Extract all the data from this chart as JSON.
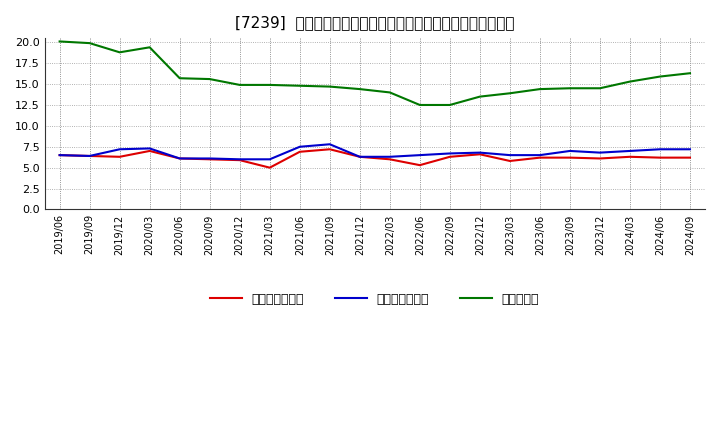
{
  "title": "[7239]  売上債権回転率、買入債務回転率、在庫回転率の推移",
  "x_labels": [
    "2019/06",
    "2019/09",
    "2019/12",
    "2020/03",
    "2020/06",
    "2020/09",
    "2020/12",
    "2021/03",
    "2021/06",
    "2021/09",
    "2021/12",
    "2022/03",
    "2022/06",
    "2022/09",
    "2022/12",
    "2023/03",
    "2023/06",
    "2023/09",
    "2023/12",
    "2024/03",
    "2024/06",
    "2024/09"
  ],
  "receivables_turnover": [
    6.5,
    6.4,
    6.3,
    7.0,
    6.1,
    6.0,
    5.9,
    5.0,
    6.9,
    7.2,
    6.3,
    6.0,
    5.3,
    6.3,
    6.6,
    5.8,
    6.2,
    6.2,
    6.1,
    6.3,
    6.2,
    6.2
  ],
  "payables_turnover": [
    6.5,
    6.4,
    7.2,
    7.3,
    6.1,
    6.1,
    6.0,
    6.0,
    7.5,
    7.8,
    6.3,
    6.3,
    6.5,
    6.7,
    6.8,
    6.5,
    6.5,
    7.0,
    6.8,
    7.0,
    7.2,
    7.2
  ],
  "inventory_turnover": [
    20.1,
    19.9,
    18.8,
    19.4,
    15.7,
    15.6,
    14.9,
    14.9,
    14.8,
    14.7,
    14.4,
    14.0,
    12.5,
    12.5,
    13.5,
    13.9,
    14.4,
    14.5,
    14.5,
    15.3,
    15.9,
    16.3
  ],
  "receivables_color": "#dd0000",
  "payables_color": "#0000cc",
  "inventory_color": "#007700",
  "legend_labels": [
    "売上債権回転率",
    "買入債務回転率",
    "在庫回転率"
  ],
  "ylim": [
    0,
    20.5
  ],
  "yticks": [
    0.0,
    2.5,
    5.0,
    7.5,
    10.0,
    12.5,
    15.0,
    17.5,
    20.0
  ],
  "background_color": "#ffffff",
  "grid_color": "#999999",
  "title_fontsize": 11
}
